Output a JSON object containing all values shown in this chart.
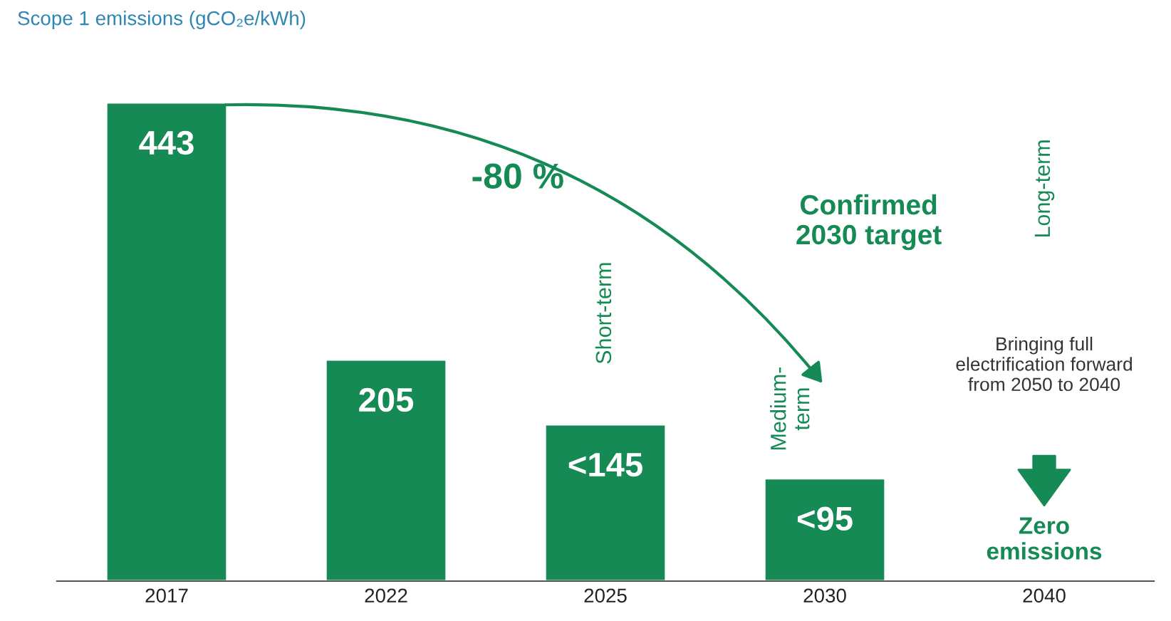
{
  "chart_data": {
    "type": "bar",
    "title": "Scope 1 emissions (gCO₂e/kWh)",
    "categories": [
      "2017",
      "2022",
      "2025",
      "2030",
      "2040"
    ],
    "values": [
      443,
      205,
      145,
      95,
      null
    ],
    "value_labels": [
      "443",
      "205",
      "<145",
      "<95",
      null
    ],
    "color": "#168a55",
    "grid": false,
    "legend": false,
    "annotations": [
      "-80 %",
      "Confirmed\n2030 target",
      "Short-term",
      "Medium-\nterm",
      "Long-term",
      "Bringing full\nelectrification forward\nfrom 2050 to 2040",
      "Zero\nemissions"
    ]
  }
}
